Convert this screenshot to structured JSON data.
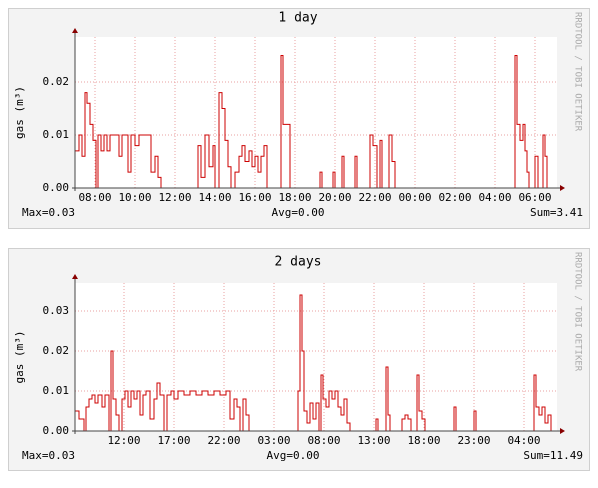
{
  "chart_data": [
    {
      "type": "line",
      "step": true,
      "title": "1 day",
      "ylabel": "gas (m³)",
      "watermark": "RRDTOOL / TOBI OETIKER",
      "footer": [
        "Max=0.03",
        "Avg=0.00",
        "Sum=3.41"
      ],
      "color": "#cc0000",
      "grid": true,
      "xlim": [
        7,
        31.1
      ],
      "ylim": [
        0,
        0.0285
      ],
      "xticks": [
        {
          "value": 8,
          "label": "08:00"
        },
        {
          "value": 10,
          "label": "10:00"
        },
        {
          "value": 12,
          "label": "12:00"
        },
        {
          "value": 14,
          "label": "14:00"
        },
        {
          "value": 16,
          "label": "16:00"
        },
        {
          "value": 18,
          "label": "18:00"
        },
        {
          "value": 20,
          "label": "20:00"
        },
        {
          "value": 22,
          "label": "22:00"
        },
        {
          "value": 24,
          "label": "00:00"
        },
        {
          "value": 26,
          "label": "02:00"
        },
        {
          "value": 28,
          "label": "04:00"
        },
        {
          "value": 30,
          "label": "06:00"
        }
      ],
      "yticks": [
        {
          "value": 0,
          "label": "0.00"
        },
        {
          "value": 0.01,
          "label": "0.01"
        },
        {
          "value": 0.02,
          "label": "0.02"
        }
      ],
      "x": [
        7.0,
        7.2,
        7.35,
        7.5,
        7.6,
        7.75,
        7.9,
        8.05,
        8.15,
        8.3,
        8.45,
        8.6,
        8.75,
        9.0,
        9.2,
        9.35,
        9.5,
        9.65,
        9.8,
        10.0,
        10.2,
        10.5,
        10.8,
        11.0,
        11.15,
        11.3,
        13.15,
        13.3,
        13.5,
        13.7,
        13.9,
        14.0,
        14.2,
        14.35,
        14.5,
        14.65,
        14.8,
        15.0,
        15.2,
        15.35,
        15.5,
        15.7,
        15.85,
        16.0,
        16.15,
        16.3,
        16.45,
        16.6,
        17.3,
        17.4,
        17.6,
        17.75,
        19.25,
        19.35,
        19.9,
        20.0,
        20.35,
        20.45,
        21.0,
        21.1,
        21.75,
        21.9,
        22.1,
        22.25,
        22.35,
        22.7,
        22.85,
        23.0,
        29.0,
        29.1,
        29.25,
        29.4,
        29.5,
        29.6,
        29.7,
        30.0,
        30.15,
        30.4,
        30.5,
        30.6,
        31.1
      ],
      "values": [
        0.007,
        0.01,
        0.006,
        0.018,
        0.016,
        0.012,
        0.009,
        0,
        0.01,
        0.007,
        0.01,
        0.007,
        0.01,
        0.01,
        0.006,
        0.01,
        0.01,
        0.003,
        0.01,
        0.008,
        0.01,
        0.01,
        0.003,
        0.006,
        0.002,
        0,
        0.008,
        0.002,
        0.01,
        0.004,
        0.008,
        0,
        0.018,
        0.015,
        0.009,
        0.004,
        0,
        0.003,
        0.006,
        0.008,
        0.005,
        0.007,
        0.004,
        0.006,
        0.003,
        0.006,
        0.008,
        0,
        0.025,
        0.012,
        0.012,
        0,
        0.003,
        0,
        0.003,
        0,
        0.006,
        0,
        0.006,
        0,
        0.01,
        0.008,
        0,
        0.009,
        0,
        0.01,
        0.005,
        0,
        0.025,
        0.012,
        0.009,
        0.012,
        0.007,
        0.003,
        0,
        0.006,
        0,
        0.01,
        0.006,
        0,
        0
      ]
    },
    {
      "type": "line",
      "step": true,
      "title": "2 days",
      "ylabel": "gas (m³)",
      "watermark": "RRDTOOL / TOBI OETIKER",
      "footer": [
        "Max=0.03",
        "Avg=0.00",
        "Sum=11.49"
      ],
      "color": "#cc0000",
      "grid": true,
      "xlim": [
        7.1,
        55.3
      ],
      "ylim": [
        0,
        0.037
      ],
      "xticks": [
        {
          "value": 12,
          "label": "12:00"
        },
        {
          "value": 17,
          "label": "17:00"
        },
        {
          "value": 22,
          "label": "22:00"
        },
        {
          "value": 27,
          "label": "03:00"
        },
        {
          "value": 32,
          "label": "08:00"
        },
        {
          "value": 37,
          "label": "13:00"
        },
        {
          "value": 42,
          "label": "18:00"
        },
        {
          "value": 47,
          "label": "23:00"
        },
        {
          "value": 52,
          "label": "04:00"
        }
      ],
      "yticks": [
        {
          "value": 0,
          "label": "0.00"
        },
        {
          "value": 0.01,
          "label": "0.01"
        },
        {
          "value": 0.02,
          "label": "0.02"
        },
        {
          "value": 0.03,
          "label": "0.03"
        }
      ],
      "x": [
        7.1,
        7.5,
        8.0,
        8.2,
        8.5,
        8.8,
        9.1,
        9.4,
        9.8,
        10.1,
        10.5,
        10.7,
        10.9,
        11.2,
        11.5,
        11.8,
        12.1,
        12.4,
        12.7,
        13.0,
        13.3,
        13.6,
        13.9,
        14.2,
        14.6,
        15.0,
        15.3,
        15.6,
        16.0,
        16.3,
        16.7,
        17.0,
        17.4,
        18.0,
        18.6,
        19.2,
        19.8,
        20.4,
        21.0,
        21.6,
        22.2,
        22.6,
        23.0,
        23.3,
        23.6,
        23.9,
        24.2,
        24.5,
        29.4,
        29.6,
        29.8,
        30.0,
        30.3,
        30.6,
        30.9,
        31.2,
        31.5,
        31.7,
        31.9,
        32.2,
        32.5,
        32.8,
        33.1,
        33.4,
        33.7,
        34.0,
        34.3,
        34.6,
        37.2,
        37.4,
        38.2,
        38.4,
        38.6,
        39.8,
        40.1,
        40.4,
        40.7,
        41.3,
        41.5,
        41.8,
        42.1,
        45.0,
        45.2,
        47.0,
        47.2,
        53.0,
        53.2,
        53.5,
        53.8,
        54.1,
        54.4,
        54.7,
        55.3
      ],
      "values": [
        0.005,
        0.003,
        0,
        0.006,
        0.008,
        0.009,
        0.007,
        0.009,
        0.006,
        0.009,
        0,
        0.02,
        0.008,
        0.004,
        0,
        0.008,
        0.01,
        0.006,
        0.01,
        0.008,
        0.01,
        0.004,
        0.009,
        0.01,
        0.003,
        0.008,
        0.012,
        0.009,
        0,
        0.009,
        0.01,
        0.008,
        0.01,
        0.009,
        0.01,
        0.009,
        0.01,
        0.009,
        0.01,
        0.009,
        0.01,
        0.003,
        0.008,
        0.006,
        0,
        0.008,
        0.004,
        0,
        0.01,
        0.034,
        0.02,
        0.005,
        0.002,
        0.007,
        0.003,
        0.007,
        0,
        0.014,
        0.008,
        0.006,
        0.01,
        0.008,
        0.01,
        0.006,
        0.004,
        0.008,
        0.002,
        0,
        0.003,
        0,
        0.016,
        0.004,
        0,
        0.003,
        0.004,
        0.003,
        0,
        0.014,
        0.005,
        0.003,
        0,
        0.006,
        0,
        0.005,
        0,
        0.014,
        0.006,
        0.004,
        0.006,
        0.002,
        0.004,
        0,
        0
      ]
    }
  ]
}
